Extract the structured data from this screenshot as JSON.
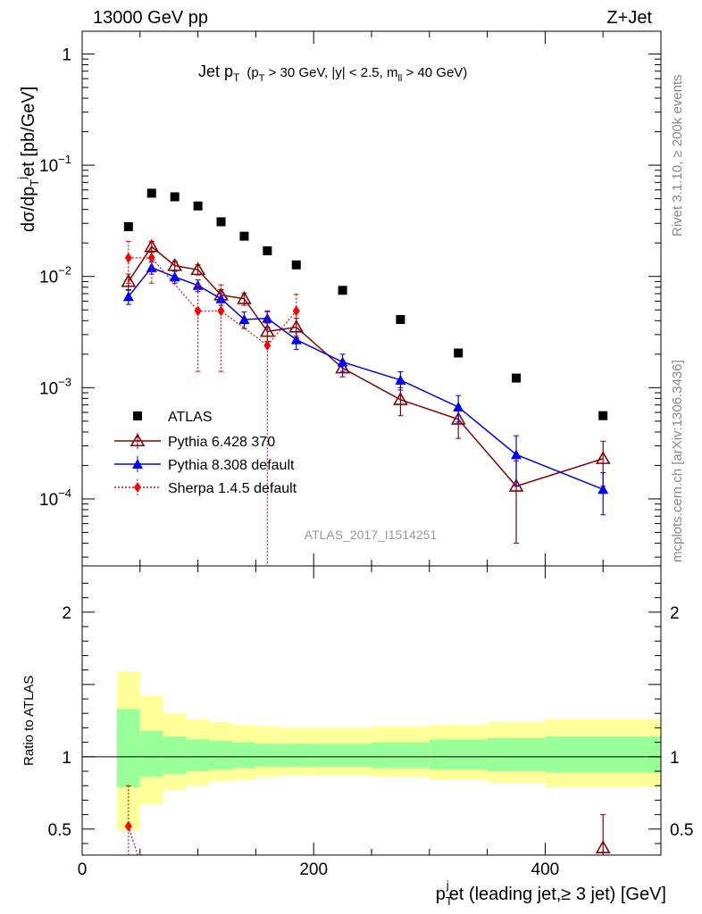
{
  "header": {
    "left": "13000 GeV pp",
    "right": "Z+Jet"
  },
  "side_texts": {
    "rivet": "Rivet 3.1.10, ≥ 200k events",
    "mcplots": "mcplots.cern.ch [arXiv:1306.3436]"
  },
  "watermark": "ATLAS_2017_I1514251",
  "plot_title": {
    "main": "Jet p",
    "main_sub": "T",
    "cuts_a": "(p",
    "cuts_a_sub": "T",
    "cuts_b": " > 30 GeV, |y| < 2.5, m",
    "cuts_b_sub": "ll",
    "cuts_c": " > 40 GeV)"
  },
  "axes": {
    "ylabel_main": "dσ/dp",
    "ylabel_sub": "T",
    "ylabel_sup": "j",
    "ylabel_rest": "et [pb/GeV]",
    "ylabel_ratio": "Ratio to ATLAS",
    "xlabel_a": "p",
    "xlabel_sub": "T",
    "xlabel_sup": "j",
    "xlabel_rest": "et (leading jet,≥ 3 jet) [GeV]"
  },
  "chart_data": {
    "type": "scatter",
    "x_range": [
      0,
      500
    ],
    "y_range_log": [
      2.5e-05,
      1.6
    ],
    "y_scale": "log",
    "ratio_range": [
      0.32,
      2.32
    ],
    "x_ticks": [
      0,
      200,
      400
    ],
    "x_tick_labels": [
      "0",
      "200",
      "400"
    ],
    "y_ticks": [
      {
        "v": 1,
        "base": "1",
        "exp": ""
      },
      {
        "v": 0.1,
        "base": "10",
        "exp": "−1"
      },
      {
        "v": 0.01,
        "base": "10",
        "exp": "−2"
      },
      {
        "v": 0.001,
        "base": "10",
        "exp": "−3"
      },
      {
        "v": 0.0001,
        "base": "10",
        "exp": "−4"
      }
    ],
    "ratio_ticks": [
      {
        "v": 0.5,
        "label": "0.5"
      },
      {
        "v": 1,
        "label": "1"
      },
      {
        "v": 2,
        "label": "2"
      }
    ],
    "legend_position": "lower-left",
    "series": [
      {
        "name": "ATLAS",
        "color": "#000000",
        "marker": "square",
        "x": [
          40,
          60,
          80,
          100,
          120,
          140,
          160,
          185,
          225,
          275,
          325,
          375,
          450
        ],
        "y": [
          0.028,
          0.056,
          0.052,
          0.043,
          0.031,
          0.023,
          0.017,
          0.0127,
          0.0075,
          0.0041,
          0.00205,
          0.00122,
          0.00056
        ],
        "err": [
          0.0015,
          0.0025,
          0.002,
          0.0015,
          0.001,
          0.0008,
          0.0006,
          0.0005,
          0.0003,
          0.00017,
          0.0001,
          6e-05,
          3e-05
        ]
      },
      {
        "name": "Pythia 6.428 370",
        "color": "#8b0000",
        "marker": "open-triangle",
        "x": [
          40,
          60,
          80,
          100,
          120,
          140,
          160,
          185,
          225,
          275,
          325,
          375,
          450
        ],
        "y": [
          0.009,
          0.0185,
          0.0125,
          0.0115,
          0.0068,
          0.0063,
          0.0032,
          0.0035,
          0.0015,
          0.00078,
          0.00052,
          0.00013,
          0.00023
        ],
        "err": [
          0.0015,
          0.002,
          0.0012,
          0.0012,
          0.0008,
          0.0008,
          0.0006,
          0.0007,
          0.00025,
          0.00022,
          0.00017,
          9e-05,
          0.0001
        ]
      },
      {
        "name": "Pythia 8.308 default",
        "color": "#0000ff",
        "marker": "filled-triangle",
        "x": [
          40,
          60,
          80,
          100,
          120,
          140,
          160,
          185,
          225,
          275,
          325,
          375,
          450
        ],
        "y": [
          0.0066,
          0.012,
          0.0099,
          0.0083,
          0.0063,
          0.0041,
          0.0042,
          0.0027,
          0.0017,
          0.00117,
          0.00067,
          0.00025,
          0.000122
        ],
        "err": [
          0.001,
          0.0015,
          0.0012,
          0.001,
          0.0008,
          0.0007,
          0.0007,
          0.0005,
          0.0003,
          0.00022,
          0.00018,
          0.00012,
          5e-05
        ]
      },
      {
        "name": "Sherpa 1.4.5 default",
        "color": "#ff0000",
        "marker": "diamond",
        "x": [
          40,
          60,
          100,
          120,
          160,
          185
        ],
        "y": [
          0.0147,
          0.0147,
          0.0049,
          0.0049,
          0.0024,
          0.0049
        ],
        "err": [
          0.006,
          0.006,
          0.0035,
          0.0035,
          0.0024,
          0.002
        ]
      }
    ],
    "ratio_bands": {
      "edges": [
        30,
        50,
        70,
        90,
        110,
        130,
        150,
        170,
        200,
        250,
        300,
        350,
        400,
        500
      ],
      "yellow": [
        [
          0.49,
          1.59
        ],
        [
          0.67,
          1.42
        ],
        [
          0.77,
          1.3
        ],
        [
          0.8,
          1.26
        ],
        [
          0.83,
          1.24
        ],
        [
          0.84,
          1.22
        ],
        [
          0.86,
          1.21
        ],
        [
          0.87,
          1.2
        ],
        [
          0.87,
          1.2
        ],
        [
          0.86,
          1.21
        ],
        [
          0.84,
          1.22
        ],
        [
          0.82,
          1.24
        ],
        [
          0.79,
          1.26
        ]
      ],
      "green": [
        [
          0.79,
          1.33
        ],
        [
          0.86,
          1.18
        ],
        [
          0.88,
          1.14
        ],
        [
          0.9,
          1.12
        ],
        [
          0.91,
          1.11
        ],
        [
          0.92,
          1.1
        ],
        [
          0.93,
          1.09
        ],
        [
          0.93,
          1.09
        ],
        [
          0.93,
          1.09
        ],
        [
          0.92,
          1.1
        ],
        [
          0.91,
          1.12
        ],
        [
          0.9,
          1.13
        ],
        [
          0.89,
          1.14
        ]
      ]
    },
    "ratio_points": [
      {
        "series": "Sherpa 1.4.5 default",
        "x": 40,
        "y": 0.52,
        "lo": 0.3,
        "hi": 0.8
      },
      {
        "series": "Pythia 6.428 370",
        "x": 450,
        "y": 0.37,
        "lo": 0.3,
        "hi": 0.6
      }
    ]
  }
}
